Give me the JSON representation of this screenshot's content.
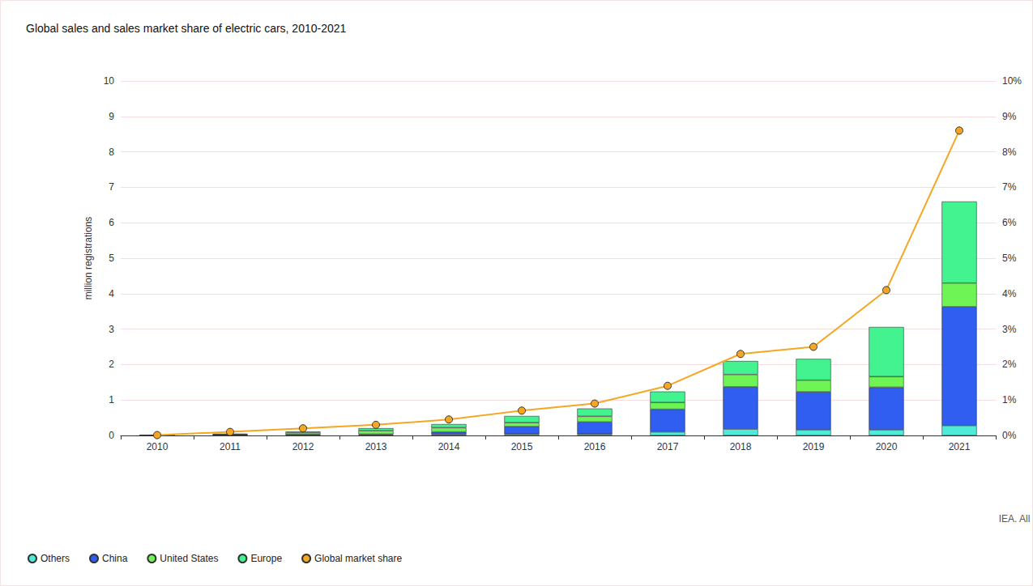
{
  "chart_data": {
    "type": "bar",
    "title": "Global sales and sales market share of electric cars, 2010-2021",
    "y_label": "million registrations",
    "note": "IEA. All",
    "categories": [
      "2010",
      "2011",
      "2012",
      "2013",
      "2014",
      "2015",
      "2016",
      "2017",
      "2018",
      "2019",
      "2020",
      "2021"
    ],
    "series": [
      {
        "name": "Others",
        "color": "#4eecd8",
        "values": [
          0.0,
          0.01,
          0.02,
          0.02,
          0.03,
          0.04,
          0.04,
          0.1,
          0.18,
          0.16,
          0.16,
          0.28
        ]
      },
      {
        "name": "China",
        "color": "#2f5ef0",
        "values": [
          0.0,
          0.005,
          0.01,
          0.015,
          0.07,
          0.21,
          0.34,
          0.64,
          1.19,
          1.07,
          1.2,
          3.35
        ]
      },
      {
        "name": "United States",
        "color": "#6ef555",
        "values": [
          0.005,
          0.018,
          0.05,
          0.1,
          0.12,
          0.11,
          0.16,
          0.19,
          0.35,
          0.33,
          0.3,
          0.67
        ]
      },
      {
        "name": "Europe",
        "color": "#43f38f",
        "values": [
          0.005,
          0.012,
          0.03,
          0.07,
          0.1,
          0.19,
          0.22,
          0.31,
          0.38,
          0.6,
          1.4,
          2.3
        ]
      },
      {
        "name": "Global market share",
        "color": "#f5a623",
        "type": "line",
        "axis": "y2",
        "marker": "circle",
        "values": [
          0.01,
          0.1,
          0.2,
          0.3,
          0.45,
          0.7,
          0.9,
          1.4,
          2.3,
          2.5,
          4.1,
          8.6
        ]
      }
    ],
    "stacked": true,
    "grid": true,
    "legend": "bottom-left",
    "ylim": [
      0,
      10
    ],
    "yticks": [
      0,
      1,
      2,
      3,
      4,
      5,
      6,
      7,
      8,
      9,
      10
    ],
    "y2lim": [
      0,
      10
    ],
    "y2ticks": [
      {
        "value": 0,
        "label": "0%"
      },
      {
        "value": 1,
        "label": "1%"
      },
      {
        "value": 2,
        "label": "2%"
      },
      {
        "value": 3,
        "label": "3%"
      },
      {
        "value": 4,
        "label": "4%"
      },
      {
        "value": 5,
        "label": "5%"
      },
      {
        "value": 6,
        "label": "6%"
      },
      {
        "value": 7,
        "label": "7%"
      },
      {
        "value": 8,
        "label": "8%"
      },
      {
        "value": 9,
        "label": "9%"
      },
      {
        "value": 10,
        "label": "10%"
      }
    ]
  }
}
